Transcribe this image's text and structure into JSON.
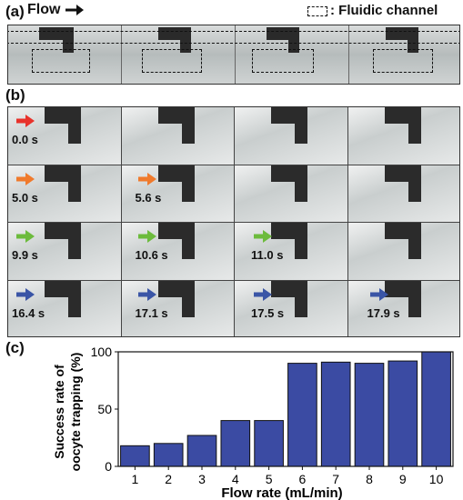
{
  "panel_labels": {
    "a": "(a)",
    "b": "(b)",
    "c": "(c)"
  },
  "flow_label": "Flow",
  "legend_label": ": Fluidic channel",
  "time_rows": [
    {
      "color": "#e8322b",
      "labels": [
        "0.0 s"
      ]
    },
    {
      "color": "#f07a2c",
      "labels": [
        "5.0 s",
        "5.6 s"
      ]
    },
    {
      "color": "#6cbb3c",
      "labels": [
        "9.9 s",
        "10.6 s",
        "11.0 s"
      ]
    },
    {
      "color": "#3a55a6",
      "labels": [
        "16.4 s",
        "17.1 s",
        "17.5 s",
        "17.9 s"
      ]
    }
  ],
  "chart_data": {
    "type": "bar",
    "categories": [
      "1",
      "2",
      "3",
      "4",
      "5",
      "6",
      "7",
      "8",
      "9",
      "10"
    ],
    "values": [
      18,
      20,
      27,
      40,
      40,
      90,
      91,
      90,
      92,
      100
    ],
    "xlabel": "Flow rate (mL/min)",
    "ylabel_line1": "Success rate of",
    "ylabel_line2": "oocyte trapping (%)",
    "ylim": [
      0,
      100
    ],
    "yticks": [
      0,
      50,
      100
    ],
    "bar_color": "#3b4ba3",
    "grid": false
  }
}
